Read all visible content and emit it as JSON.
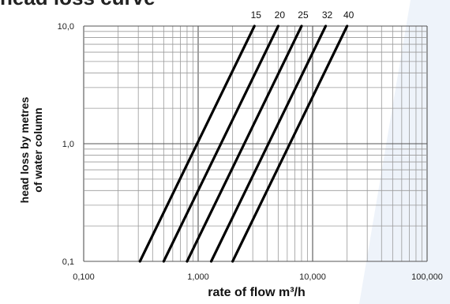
{
  "page": {
    "background_accent": "#eef3fa"
  },
  "chart_data": {
    "type": "line",
    "title": "head loss curve",
    "xlabel": "rate of flow m³/h",
    "ylabel_lines": [
      "head loss by metres",
      "of water column"
    ],
    "x_scale": "log",
    "y_scale": "log",
    "xlim": [
      0.1,
      100
    ],
    "ylim": [
      0.1,
      10
    ],
    "x_ticks": [
      {
        "value": 0.1,
        "label": "0,100"
      },
      {
        "value": 1,
        "label": "1,000"
      },
      {
        "value": 10,
        "label": "10,000"
      },
      {
        "value": 100,
        "label": "100,000"
      }
    ],
    "y_ticks": [
      {
        "value": 0.1,
        "label": "0,1"
      },
      {
        "value": 1,
        "label": "1,0"
      },
      {
        "value": 10,
        "label": "10,0"
      }
    ],
    "grid": true,
    "line_color": "#000000",
    "series": [
      {
        "name": "15",
        "x": [
          0.31,
          3.1
        ],
        "y": [
          0.1,
          10
        ]
      },
      {
        "name": "20",
        "x": [
          0.5,
          5.0
        ],
        "y": [
          0.1,
          10
        ]
      },
      {
        "name": "25",
        "x": [
          0.8,
          8.0
        ],
        "y": [
          0.1,
          10
        ]
      },
      {
        "name": "32",
        "x": [
          1.3,
          13.0
        ],
        "y": [
          0.1,
          10
        ]
      },
      {
        "name": "40",
        "x": [
          2.0,
          20.0
        ],
        "y": [
          0.1,
          10
        ]
      }
    ]
  }
}
